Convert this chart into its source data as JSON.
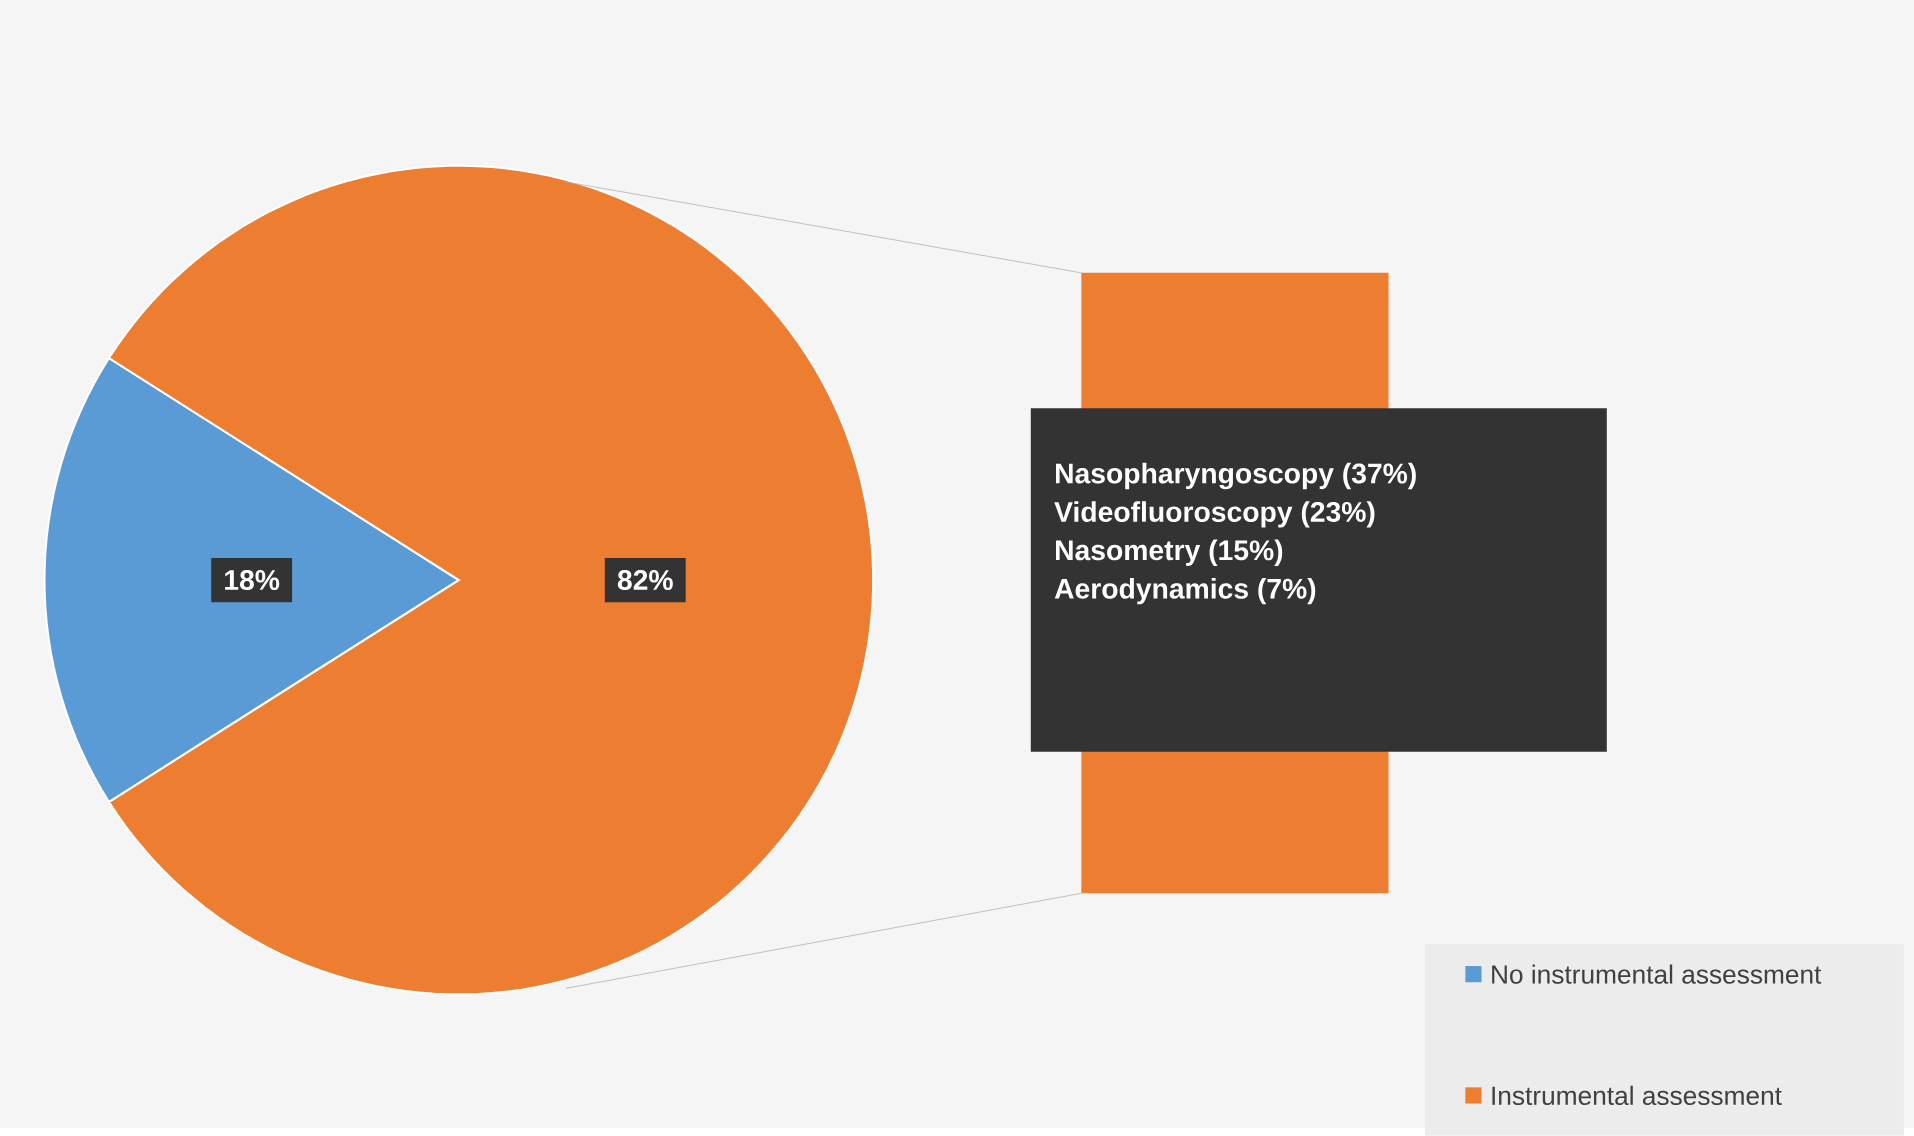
{
  "chart_data": {
    "type": "pie",
    "categories": [
      "No instrumental assessment",
      "Instrumental assessment"
    ],
    "values": [
      18,
      82
    ],
    "value_labels": [
      "18%",
      "82%"
    ],
    "colors": [
      "#5b9bd5",
      "#ed7d31"
    ],
    "legend": "bottom right",
    "annotations": [
      "Nasopharyngoscopy (37%)",
      "Videofluoroscopy (23%)",
      "Nasometry (15%)",
      "Aerodynamics (7%)"
    ]
  }
}
